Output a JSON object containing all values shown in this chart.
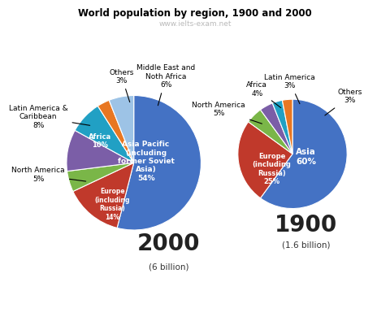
{
  "title": "World population by region, 1900 and 2000",
  "subtitle": "www.ielts-exam.net",
  "pie2000": {
    "labels": [
      "Asia Pacific\n(including\nformer Soviet\nAsia)",
      "Europe\n(including\nRussia)",
      "North America",
      "Africa",
      "Latin America &\nCaribbean",
      "Others",
      "Middle East and\nNoth Africa"
    ],
    "values": [
      54,
      14,
      5,
      10,
      8,
      3,
      6
    ],
    "colors": [
      "#4472C4",
      "#C0392B",
      "#7AB648",
      "#7B5EA7",
      "#21A0C4",
      "#E87722",
      "#9DC3E6"
    ],
    "year": "2000",
    "total": "(6 billion)"
  },
  "pie1900": {
    "labels": [
      "Asia",
      "Europe\n(including\nRussia)",
      "North America",
      "Africa",
      "Latin America",
      "Others"
    ],
    "values": [
      60,
      25,
      5,
      4,
      3,
      3
    ],
    "colors": [
      "#4472C4",
      "#C0392B",
      "#7AB648",
      "#7B5EA7",
      "#21A0C4",
      "#E87722"
    ],
    "year": "1900",
    "total": "(1.6 billion)"
  }
}
